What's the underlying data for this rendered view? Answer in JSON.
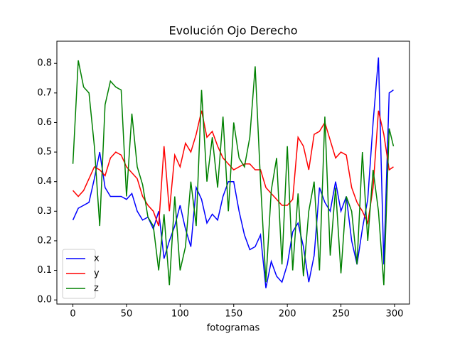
{
  "chart_data": {
    "type": "line",
    "title": "Evolución Ojo Derecho",
    "xlabel": "fotogramas",
    "x": [
      0,
      5,
      10,
      15,
      20,
      25,
      30,
      35,
      40,
      45,
      50,
      55,
      60,
      65,
      70,
      75,
      80,
      85,
      90,
      95,
      100,
      105,
      110,
      115,
      120,
      125,
      130,
      135,
      140,
      145,
      150,
      155,
      160,
      165,
      170,
      175,
      180,
      185,
      190,
      195,
      200,
      205,
      210,
      215,
      220,
      225,
      230,
      235,
      240,
      245,
      250,
      255,
      260,
      265,
      270,
      275,
      280,
      285,
      290,
      295,
      299
    ],
    "series": [
      {
        "name": "x",
        "color": "#0000ff",
        "values": [
          0.27,
          0.31,
          0.32,
          0.33,
          0.41,
          0.5,
          0.38,
          0.35,
          0.35,
          0.35,
          0.34,
          0.36,
          0.3,
          0.27,
          0.28,
          0.24,
          0.3,
          0.14,
          0.2,
          0.25,
          0.32,
          0.24,
          0.18,
          0.38,
          0.34,
          0.26,
          0.29,
          0.27,
          0.35,
          0.4,
          0.4,
          0.3,
          0.22,
          0.17,
          0.18,
          0.22,
          0.04,
          0.13,
          0.08,
          0.06,
          0.12,
          0.23,
          0.26,
          0.18,
          0.06,
          0.15,
          0.38,
          0.33,
          0.3,
          0.4,
          0.3,
          0.35,
          0.2,
          0.12,
          0.24,
          0.34,
          0.6,
          0.82,
          0.12,
          0.7,
          0.71
        ]
      },
      {
        "name": "y",
        "color": "#ff0000",
        "values": [
          0.37,
          0.35,
          0.37,
          0.41,
          0.45,
          0.44,
          0.42,
          0.48,
          0.5,
          0.49,
          0.45,
          0.43,
          0.41,
          0.35,
          0.32,
          0.3,
          0.25,
          0.52,
          0.3,
          0.49,
          0.45,
          0.53,
          0.5,
          0.56,
          0.64,
          0.55,
          0.57,
          0.52,
          0.48,
          0.46,
          0.44,
          0.45,
          0.46,
          0.46,
          0.44,
          0.44,
          0.38,
          0.36,
          0.34,
          0.32,
          0.32,
          0.34,
          0.55,
          0.52,
          0.44,
          0.56,
          0.57,
          0.6,
          0.54,
          0.48,
          0.5,
          0.49,
          0.38,
          0.33,
          0.3,
          0.26,
          0.38,
          0.64,
          0.56,
          0.44,
          0.45
        ]
      },
      {
        "name": "z",
        "color": "#008000",
        "values": [
          0.46,
          0.81,
          0.72,
          0.7,
          0.52,
          0.25,
          0.66,
          0.74,
          0.72,
          0.71,
          0.35,
          0.63,
          0.45,
          0.39,
          0.28,
          0.25,
          0.1,
          0.29,
          0.05,
          0.35,
          0.1,
          0.18,
          0.4,
          0.25,
          0.71,
          0.4,
          0.55,
          0.38,
          0.62,
          0.3,
          0.6,
          0.48,
          0.45,
          0.55,
          0.79,
          0.4,
          0.06,
          0.37,
          0.48,
          0.12,
          0.52,
          0.1,
          0.36,
          0.08,
          0.3,
          0.4,
          0.1,
          0.62,
          0.15,
          0.38,
          0.09,
          0.35,
          0.3,
          0.12,
          0.5,
          0.2,
          0.44,
          0.3,
          0.05,
          0.58,
          0.52
        ]
      }
    ],
    "xlim": [
      -14.95,
      313.95
    ],
    "ylim": [
      -0.014,
      0.875
    ],
    "xticks": [
      0,
      50,
      100,
      150,
      200,
      250,
      300
    ],
    "yticks": [
      {
        "value": 0,
        "label": "0.0"
      },
      0.1,
      0.2,
      0.3,
      0.4,
      0.5,
      0.6,
      0.7,
      0.8
    ],
    "legend": "lower left"
  }
}
